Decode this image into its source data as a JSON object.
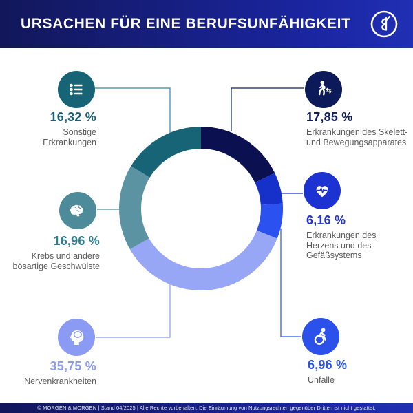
{
  "header": {
    "title": "URSACHEN FÜR EINE BERUFSUNFÄHIGKEIT"
  },
  "footer": {
    "text": "© MORGEN & MORGEN | Stand 04/2025 | Alle Rechte vorbehalten. Die Einräumung von Nutzungsrechten gegenüber Dritten ist nicht gestattet."
  },
  "chart_data": {
    "type": "pie",
    "subtype": "donut",
    "title": "Ursachen für eine Berufsunfähigkeit",
    "unit": "percent",
    "direction": "clockwise",
    "start_angle_deg": 0,
    "segments": [
      {
        "label": "Erkrankungen des Skelett- und Bewegungsapparates",
        "value": 17.85,
        "color": "#0b1150"
      },
      {
        "label": "Erkrankungen des Herzens und des Gefäßsystems",
        "value": 6.16,
        "color": "#1630ca"
      },
      {
        "label": "Unfälle",
        "value": 6.96,
        "color": "#2b51f0"
      },
      {
        "label": "Nervenkrankheiten",
        "value": 35.75,
        "color": "#98a7f5"
      },
      {
        "label": "Krebs und andere bösartige Geschwülste",
        "value": 16.96,
        "color": "#5b93a2"
      },
      {
        "label": "Sonstige Erkrankungen",
        "value": 16.32,
        "color": "#176477"
      }
    ]
  },
  "callouts": [
    {
      "id": "skelett",
      "percent": "17,85 %",
      "label": "Erkrankungen des Skelett-\nund Bewegungsapparates",
      "color": "#0f1b5c",
      "icon": "walking-person-icon",
      "icon_color": "#0d1a5a"
    },
    {
      "id": "herz",
      "percent": "6,16 %",
      "label": "Erkrankungen des\nHerzens und des\nGefäßsystems",
      "color": "#2134cf",
      "icon": "heart-pulse-icon",
      "icon_color": "#1c33d2"
    },
    {
      "id": "unfaelle",
      "percent": "6,96 %",
      "label": "Unfälle",
      "color": "#2b51ea",
      "icon": "wheelchair-icon",
      "icon_color": "#2b51ea"
    },
    {
      "id": "nerven",
      "percent": "35,75 %",
      "label": "Nervenkrankheiten",
      "color": "#8b9af2",
      "icon": "head-brain-icon",
      "icon_color": "#8b9af2"
    },
    {
      "id": "krebs",
      "percent": "16,96 %",
      "label": "Krebs und andere\nbösartige Geschwülste",
      "color": "#2f7e91",
      "icon": "brain-icon",
      "icon_color": "#4d8a9a"
    },
    {
      "id": "sonstige",
      "percent": "16,32 %",
      "label": "Sonstige\nErkrankungen",
      "color": "#1b6076",
      "icon": "list-icon",
      "icon_color": "#176477"
    }
  ]
}
